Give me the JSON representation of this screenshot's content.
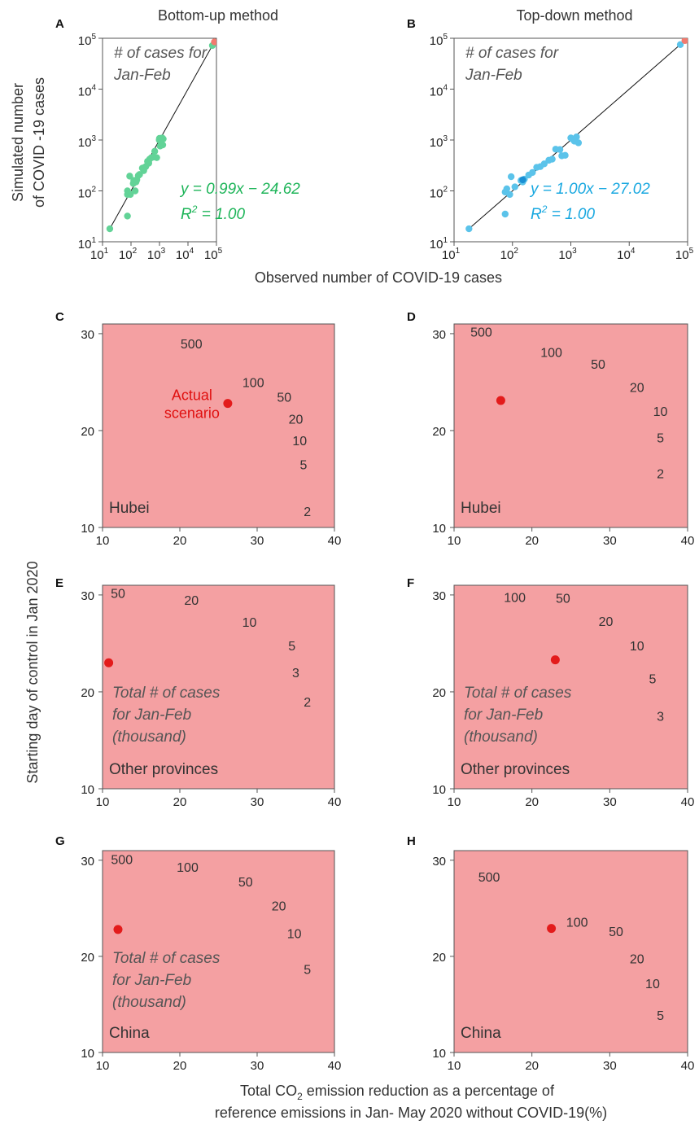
{
  "figure": {
    "col_titles": [
      "Bottom-up method",
      "Top-down method"
    ],
    "scatter_ylabel_lines": [
      "Simulated number",
      "of COVID -19 cases"
    ],
    "scatter_xlabel": "Observed number of COVID-19 cases",
    "contour_ylabel": "Starting day of control in Jan 2020",
    "contour_xlabel_line1_pre": "Total CO",
    "contour_xlabel_sub": "2",
    "contour_xlabel_line1_post": " emission reduction as a percentage of",
    "contour_xlabel_line2": "reference emissions in Jan- May 2020 without COVID-19(%)"
  },
  "colors": {
    "red_region": "#f4a0a2",
    "band1": "#61bdea",
    "band2": "#7dcdef",
    "band3": "#97d8e6",
    "band4": "#acdfe9",
    "band5": "#b6e7f3",
    "green": "#62d397",
    "green_text": "#1fb55a",
    "blue": "#5bc3ea",
    "blue_text": "#19a8e0",
    "red_point": "#e31b1b",
    "salmon_point": "#f27a6e"
  },
  "chart_data": [
    {
      "panel": "A",
      "type": "scatter",
      "title": "Bottom-up method",
      "xlabel": "Observed number of COVID-19 cases",
      "ylabel": "Simulated number of COVID -19 cases",
      "xscale": "log",
      "yscale": "log",
      "xlim": [
        10,
        100000
      ],
      "ylim": [
        10,
        100000
      ],
      "xticks": [
        "10",
        "10",
        "10",
        "10",
        "10"
      ],
      "xtick_exps": [
        "1",
        "2",
        "3",
        "4",
        "5"
      ],
      "yticks": [
        "10",
        "10",
        "10",
        "10",
        "10"
      ],
      "ytick_exps": [
        "1",
        "2",
        "3",
        "4",
        "5"
      ],
      "annotation_lines": [
        "# of cases for",
        "Jan-Feb"
      ],
      "equation": "y = 0.99x − 24.62",
      "r2_label": "R",
      "r2_sup": "2",
      "r2_value": " = 1.00",
      "fit_line": [
        [
          18,
          18
        ],
        [
          80000,
          80000
        ]
      ],
      "points": [
        [
          18,
          18
        ],
        [
          75,
          32
        ],
        [
          75,
          85
        ],
        [
          75,
          100
        ],
        [
          83,
          90
        ],
        [
          90,
          195
        ],
        [
          95,
          85
        ],
        [
          120,
          140
        ],
        [
          125,
          160
        ],
        [
          140,
          100
        ],
        [
          150,
          150
        ],
        [
          160,
          165
        ],
        [
          180,
          200
        ],
        [
          200,
          210
        ],
        [
          250,
          280
        ],
        [
          280,
          250
        ],
        [
          300,
          290
        ],
        [
          330,
          300
        ],
        [
          380,
          380
        ],
        [
          420,
          350
        ],
        [
          450,
          420
        ],
        [
          520,
          450
        ],
        [
          600,
          460
        ],
        [
          680,
          600
        ],
        [
          800,
          450
        ],
        [
          980,
          1000
        ],
        [
          1000,
          1080
        ],
        [
          1050,
          760
        ],
        [
          1150,
          950
        ],
        [
          1250,
          1100
        ],
        [
          1300,
          800
        ],
        [
          1350,
          1050
        ]
      ],
      "hubei_point": [
        85000,
        85000
      ],
      "second_point": [
        72000,
        72000
      ]
    },
    {
      "panel": "B",
      "type": "scatter",
      "title": "Top-down method",
      "xscale": "log",
      "yscale": "log",
      "xlim": [
        10,
        100000
      ],
      "ylim": [
        10,
        100000
      ],
      "xticks": [
        "10",
        "10",
        "10",
        "10",
        "10"
      ],
      "xtick_exps": [
        "1",
        "2",
        "3",
        "4",
        "5"
      ],
      "yticks": [
        "10",
        "10",
        "10",
        "10",
        "10"
      ],
      "ytick_exps": [
        "1",
        "2",
        "3",
        "4",
        "5"
      ],
      "annotation_lines": [
        "# of cases for",
        "Jan-Feb"
      ],
      "equation": "y = 1.00x − 27.02",
      "r2_label": "R",
      "r2_sup": "2",
      "r2_value": " = 1.00",
      "fit_line": [
        [
          18,
          18
        ],
        [
          85000,
          85000
        ]
      ],
      "points": [
        [
          18,
          18
        ],
        [
          75,
          35
        ],
        [
          75,
          95
        ],
        [
          80,
          110
        ],
        [
          90,
          85
        ],
        [
          95,
          190
        ],
        [
          110,
          120
        ],
        [
          140,
          160
        ],
        [
          150,
          150
        ],
        [
          160,
          170
        ],
        [
          190,
          205
        ],
        [
          220,
          230
        ],
        [
          260,
          290
        ],
        [
          300,
          300
        ],
        [
          350,
          340
        ],
        [
          420,
          400
        ],
        [
          480,
          420
        ],
        [
          550,
          660
        ],
        [
          650,
          650
        ],
        [
          700,
          490
        ],
        [
          800,
          500
        ],
        [
          1000,
          1100
        ],
        [
          1050,
          1050
        ],
        [
          1150,
          950
        ],
        [
          1250,
          1150
        ],
        [
          1350,
          880
        ]
      ],
      "dark_point": [
        150,
        165
      ],
      "hubei_point": [
        90000,
        90000
      ],
      "second_point": [
        75000,
        75000
      ]
    },
    {
      "panel": "C",
      "type": "contour",
      "region_label": "Hubei",
      "xlim": [
        10,
        40
      ],
      "ylim": [
        10,
        31
      ],
      "xticks": [
        "10",
        "20",
        "30",
        "40"
      ],
      "yticks": [
        "10",
        "20",
        "30"
      ],
      "f0": 7,
      "k": 0.00495,
      "levels": [
        500,
        100,
        50,
        20,
        10,
        5,
        2
      ],
      "band_levels": [
        500,
        100,
        50,
        20
      ],
      "label_positions": [
        [
          21.5,
          29
        ],
        [
          29.5,
          25
        ],
        [
          33.5,
          23.5
        ],
        [
          35,
          21.2
        ],
        [
          35.5,
          19
        ],
        [
          36,
          16.5
        ],
        [
          36.5,
          11.7
        ]
      ],
      "contour_labels": [
        "500",
        "100",
        "50",
        "20",
        "10",
        "5",
        "2"
      ],
      "actual_point": [
        26.2,
        22.8
      ],
      "actual_label_lines": [
        "Actual",
        "scenario"
      ]
    },
    {
      "panel": "D",
      "type": "contour",
      "region_label": "Hubei",
      "xlim": [
        10,
        40
      ],
      "ylim": [
        10,
        31
      ],
      "xticks": [
        "10",
        "20",
        "30",
        "40"
      ],
      "yticks": [
        "10",
        "20",
        "30"
      ],
      "f0": 7,
      "k": 0.00545,
      "levels": [
        500,
        100,
        50,
        20,
        10,
        5,
        2
      ],
      "band_levels": [
        500,
        100,
        50,
        20
      ],
      "label_positions": [
        [
          13.5,
          30.2
        ],
        [
          22.5,
          28.1
        ],
        [
          28.5,
          26.9
        ],
        [
          33.5,
          24.5
        ],
        [
          36.5,
          22
        ],
        [
          36.5,
          19.3
        ],
        [
          36.5,
          15.6
        ]
      ],
      "contour_labels": [
        "500",
        "100",
        "50",
        "20",
        "10",
        "5",
        "2"
      ],
      "actual_point": [
        16,
        23.1
      ]
    },
    {
      "panel": "E",
      "type": "contour",
      "region_label": "Other provinces",
      "note_lines": [
        "Total # of cases",
        "for Jan-Feb",
        "(thousand)"
      ],
      "xlim": [
        10,
        40
      ],
      "ylim": [
        10,
        31
      ],
      "xticks": [
        "10",
        "20",
        "30",
        "40"
      ],
      "yticks": [
        "10",
        "20",
        "30"
      ],
      "f0": 6,
      "k": 0.0018,
      "levels": [
        50,
        20,
        10,
        5,
        3,
        2
      ],
      "band_levels": [
        50,
        20,
        10,
        5
      ],
      "label_positions": [
        [
          12,
          30.2
        ],
        [
          21.5,
          29.5
        ],
        [
          29,
          27.2
        ],
        [
          34.5,
          24.8
        ],
        [
          35,
          22
        ],
        [
          36.5,
          19
        ]
      ],
      "contour_labels": [
        "50",
        "20",
        "10",
        "5",
        "3",
        "2"
      ],
      "actual_point": [
        10.8,
        23
      ]
    },
    {
      "panel": "F",
      "type": "contour",
      "region_label": "Other provinces",
      "note_lines": [
        "Total # of cases",
        "for Jan-Feb",
        "(thousand)"
      ],
      "xlim": [
        10,
        40
      ],
      "ylim": [
        10,
        31
      ],
      "xticks": [
        "10",
        "20",
        "30",
        "40"
      ],
      "yticks": [
        "10",
        "20",
        "30"
      ],
      "f0": 6,
      "k": 0.00285,
      "levels": [
        100,
        50,
        20,
        10,
        5,
        3
      ],
      "band_levels": [
        100,
        50,
        20,
        10
      ],
      "label_positions": [
        [
          17.8,
          29.8
        ],
        [
          24,
          29.7
        ],
        [
          29.5,
          27.3
        ],
        [
          33.5,
          24.8
        ],
        [
          35.5,
          21.4
        ],
        [
          36.5,
          17.5
        ]
      ],
      "contour_labels": [
        "100",
        "50",
        "20",
        "10",
        "5",
        "3"
      ],
      "actual_point": [
        23,
        23.3
      ]
    },
    {
      "panel": "G",
      "type": "contour",
      "region_label": "China",
      "note_lines": [
        "Total # of cases",
        "for Jan-Feb",
        "(thousand)"
      ],
      "xlim": [
        10,
        40
      ],
      "ylim": [
        10,
        31
      ],
      "xticks": [
        "10",
        "20",
        "30",
        "40"
      ],
      "yticks": [
        "10",
        "20",
        "30"
      ],
      "f0": 7,
      "k": 0.00335,
      "levels": [
        500,
        100,
        50,
        20,
        10,
        5
      ],
      "band_levels": [
        500,
        100,
        50,
        20
      ],
      "label_positions": [
        [
          12.5,
          30.1
        ],
        [
          21,
          29.3
        ],
        [
          28.5,
          27.8
        ],
        [
          32.8,
          25.3
        ],
        [
          34.8,
          22.4
        ],
        [
          36.5,
          18.7
        ]
      ],
      "contour_labels": [
        "500",
        "100",
        "50",
        "20",
        "10",
        "5"
      ],
      "actual_point": [
        12,
        22.8
      ]
    },
    {
      "panel": "H",
      "type": "contour",
      "region_label": "China",
      "xlim": [
        10,
        40
      ],
      "ylim": [
        10,
        31
      ],
      "xticks": [
        "10",
        "20",
        "30",
        "40"
      ],
      "yticks": [
        "10",
        "20",
        "30"
      ],
      "f0": 7,
      "k": 0.00482,
      "levels": [
        500,
        100,
        50,
        20,
        10,
        5
      ],
      "band_levels": [
        500,
        100,
        50,
        20
      ],
      "label_positions": [
        [
          14.5,
          28.3
        ],
        [
          25.8,
          23.6
        ],
        [
          30.8,
          22.6
        ],
        [
          33.5,
          19.8
        ],
        [
          35.5,
          17.2
        ],
        [
          36.5,
          13.9
        ]
      ],
      "contour_labels": [
        "500",
        "100",
        "50",
        "20",
        "10",
        "5"
      ],
      "actual_point": [
        22.5,
        22.9
      ]
    }
  ]
}
